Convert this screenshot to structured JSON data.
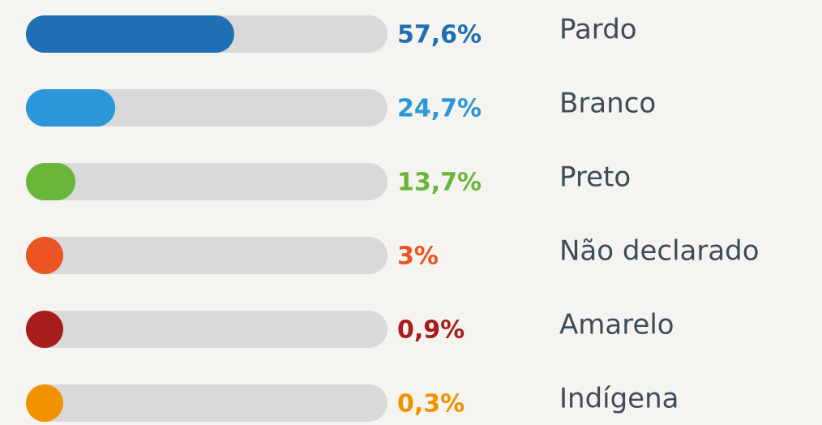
{
  "chart_data": {
    "type": "bar",
    "orientation": "horizontal",
    "categories": [
      "Pardo",
      "Branco",
      "Preto",
      "Não declarado",
      "Amarelo",
      "Indígena"
    ],
    "values": [
      57.6,
      24.7,
      13.7,
      3,
      0.9,
      0.3
    ],
    "value_labels": [
      "57,6%",
      "24,7%",
      "13,7%",
      "3%",
      "0,9%",
      "0,3%"
    ],
    "colors": [
      "#1f6fb5",
      "#2b96d8",
      "#6ab63a",
      "#ec5424",
      "#a81c1c",
      "#f39200"
    ],
    "xlim": [
      0,
      100
    ]
  }
}
